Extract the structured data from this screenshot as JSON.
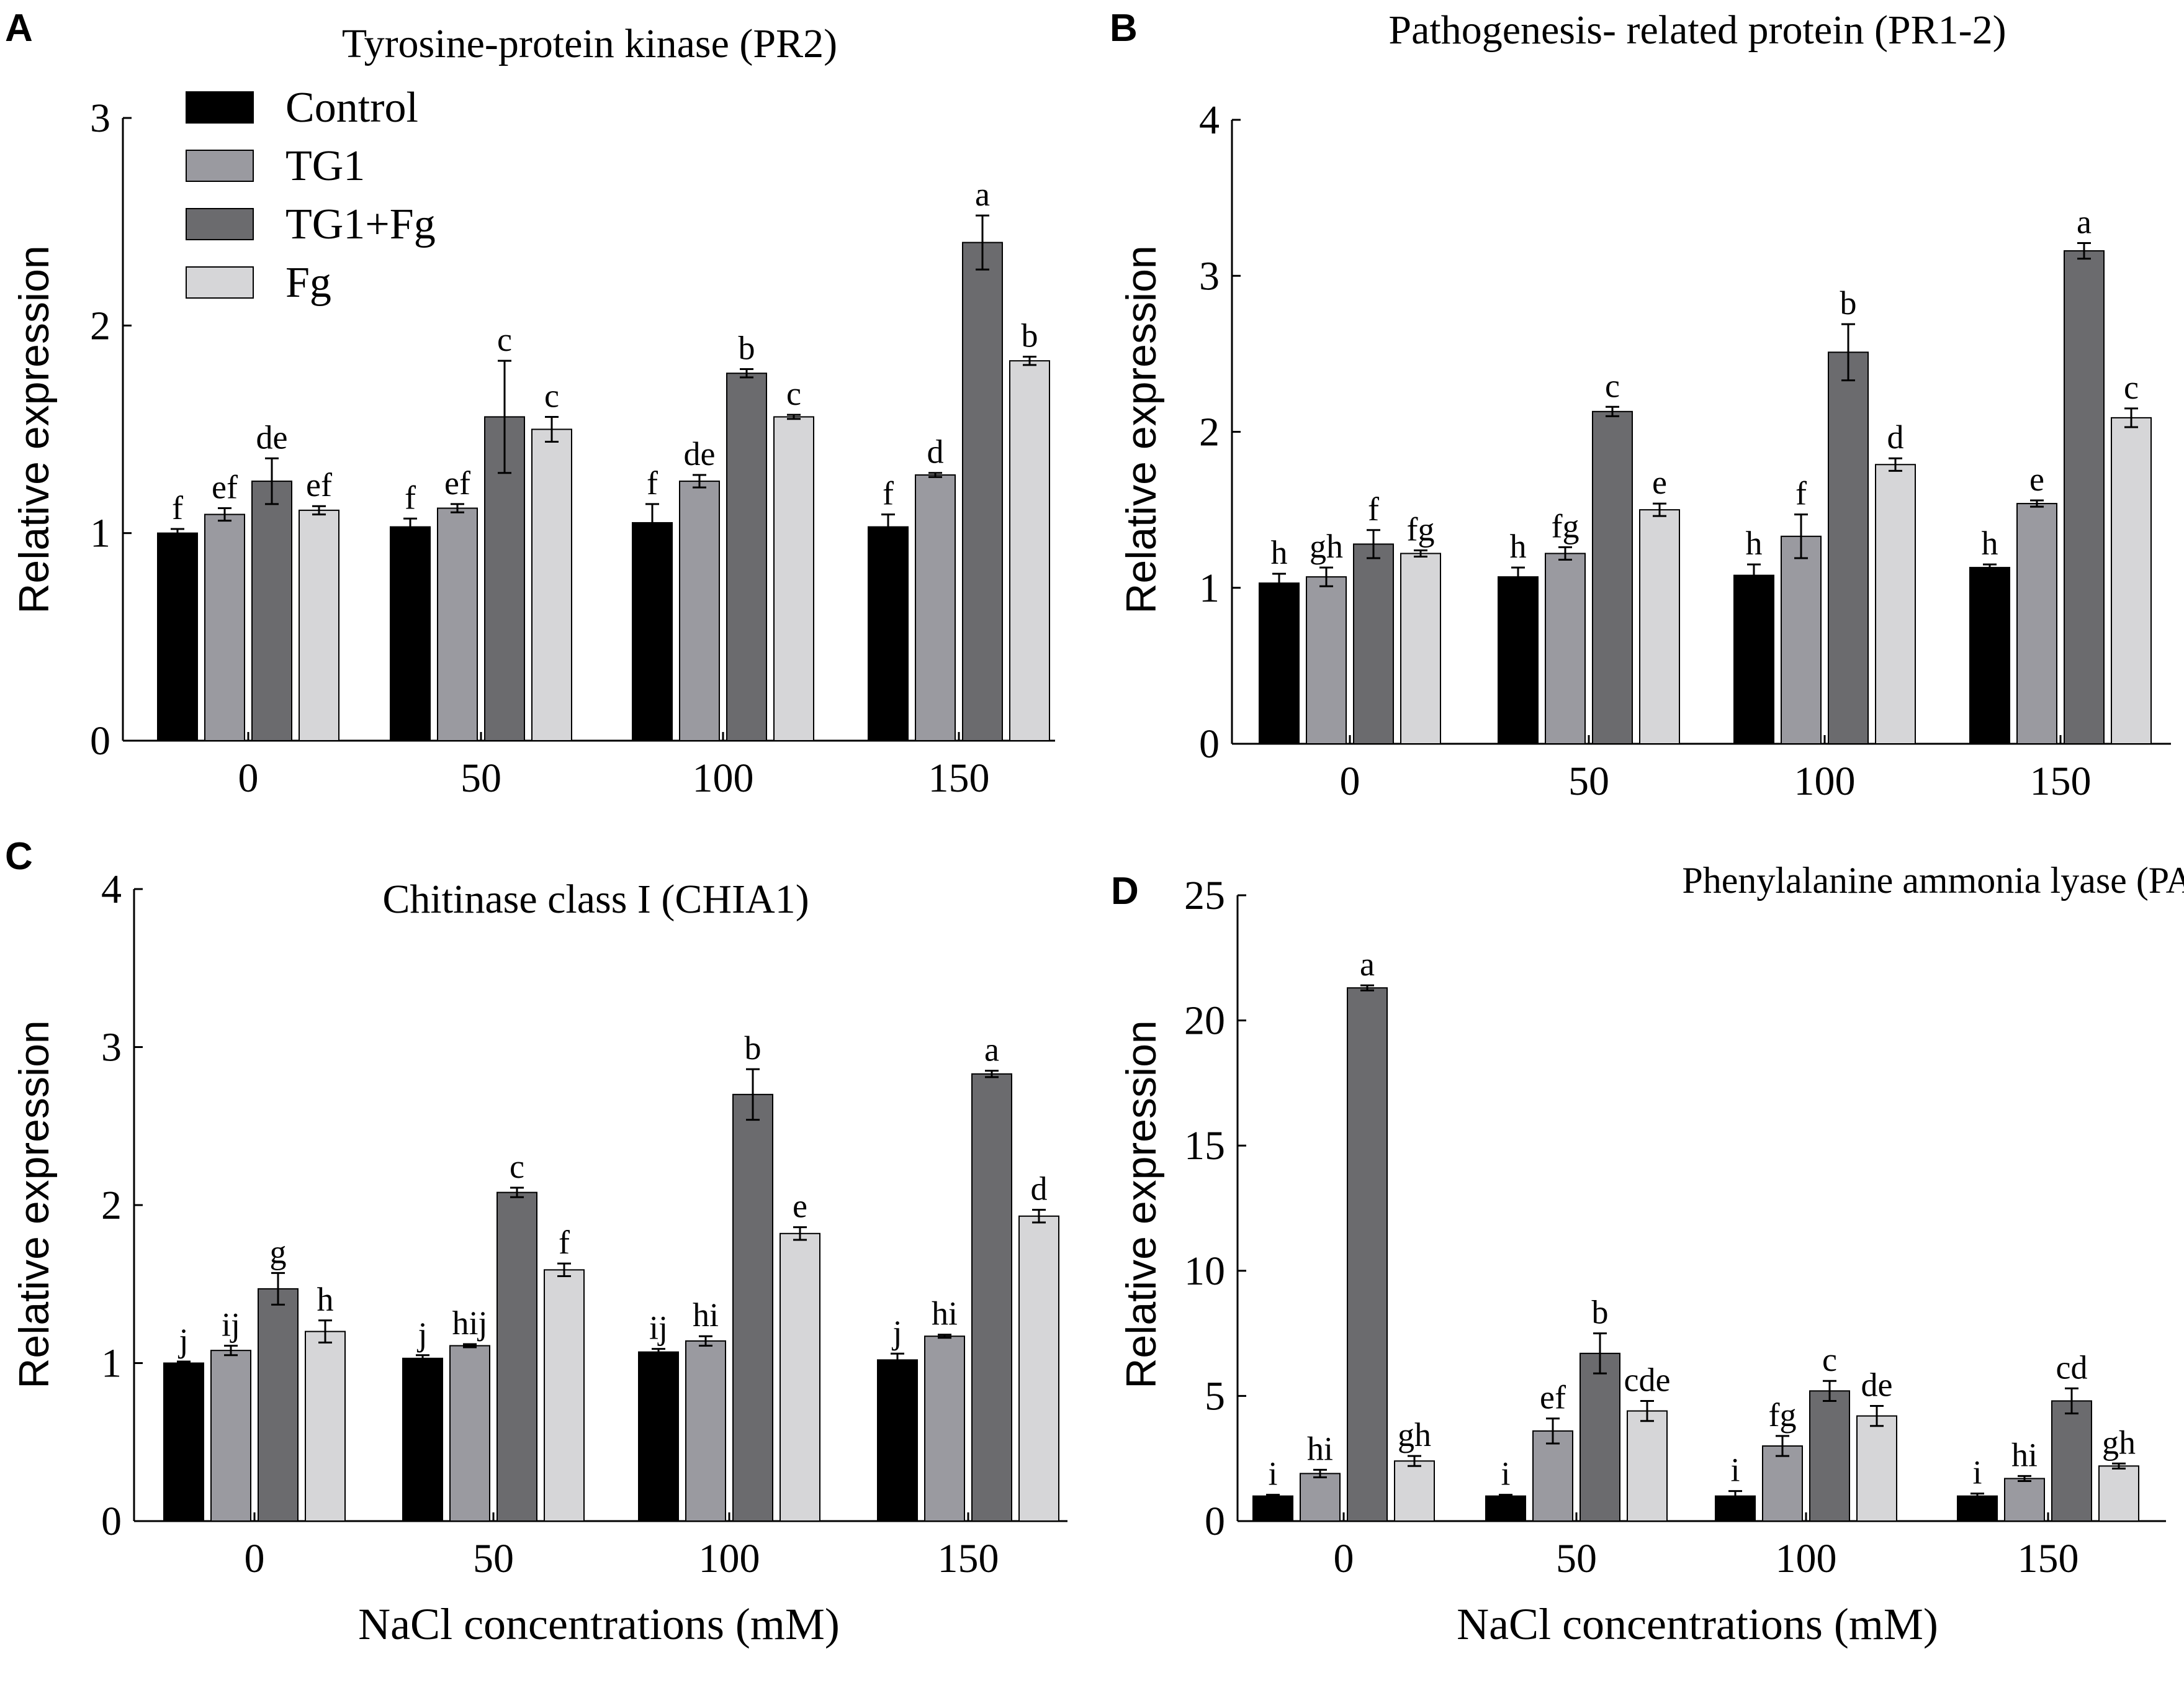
{
  "chart_data": [
    {
      "panel": "A",
      "type": "bar",
      "title": "Tyrosine-protein kinase (PR2)",
      "xlabel": "",
      "ylabel": "Relative expression",
      "ylim": [
        0,
        3
      ],
      "yticks": [
        "0",
        "1",
        "2",
        "3"
      ],
      "categories": [
        "0",
        "50",
        "100",
        "150"
      ],
      "legend": [
        "Control",
        "TG1",
        "TG1+Fg",
        "Fg"
      ],
      "series": [
        {
          "name": "Control",
          "color": "#000000",
          "values": [
            1.0,
            1.03,
            1.05,
            1.03
          ],
          "errors": [
            0.02,
            0.04,
            0.09,
            0.06
          ],
          "labels": [
            "f",
            "f",
            "f",
            "f"
          ]
        },
        {
          "name": "TG1",
          "color": "#9a9aa0",
          "values": [
            1.09,
            1.12,
            1.25,
            1.28
          ],
          "errors": [
            0.03,
            0.02,
            0.03,
            0.01
          ],
          "labels": [
            "ef",
            "ef",
            "de",
            "d"
          ]
        },
        {
          "name": "TG1+Fg",
          "color": "#6b6b6e",
          "values": [
            1.25,
            1.56,
            1.77,
            2.4
          ],
          "errors": [
            0.11,
            0.27,
            0.02,
            0.13
          ],
          "labels": [
            "de",
            "c",
            "b",
            "a"
          ]
        },
        {
          "name": "Fg",
          "color": "#d6d6d8",
          "values": [
            1.11,
            1.5,
            1.56,
            1.83
          ],
          "errors": [
            0.02,
            0.06,
            0.01,
            0.02
          ],
          "labels": [
            "ef",
            "c",
            "c",
            "b"
          ]
        }
      ]
    },
    {
      "panel": "B",
      "type": "bar",
      "title": "Pathogenesis- related protein (PR1-2)",
      "xlabel": "",
      "ylabel": "Relative expression",
      "ylim": [
        0,
        4
      ],
      "yticks": [
        "0",
        "1",
        "2",
        "3",
        "4"
      ],
      "categories": [
        "0",
        "50",
        "100",
        "150"
      ],
      "series": [
        {
          "name": "Control",
          "color": "#000000",
          "values": [
            1.03,
            1.07,
            1.08,
            1.13
          ],
          "errors": [
            0.06,
            0.06,
            0.07,
            0.02
          ],
          "labels": [
            "h",
            "h",
            "h",
            "h"
          ]
        },
        {
          "name": "TG1",
          "color": "#9a9aa0",
          "values": [
            1.07,
            1.22,
            1.33,
            1.54
          ],
          "errors": [
            0.06,
            0.04,
            0.14,
            0.02
          ],
          "labels": [
            "gh",
            "fg",
            "f",
            "e"
          ]
        },
        {
          "name": "TG1+Fg",
          "color": "#6b6b6e",
          "values": [
            1.28,
            2.13,
            2.51,
            3.16
          ],
          "errors": [
            0.09,
            0.03,
            0.18,
            0.05
          ],
          "labels": [
            "f",
            "c",
            "b",
            "a"
          ]
        },
        {
          "name": "Fg",
          "color": "#d6d6d8",
          "values": [
            1.22,
            1.5,
            1.79,
            2.09
          ],
          "errors": [
            0.02,
            0.04,
            0.04,
            0.06
          ],
          "labels": [
            "fg",
            "e",
            "d",
            "c"
          ]
        }
      ]
    },
    {
      "panel": "C",
      "type": "bar",
      "title": "Chitinase class I (CHIA1)",
      "xlabel": "NaCl concentrations (mM)",
      "ylabel": "Relative expression",
      "ylim": [
        0,
        4
      ],
      "yticks": [
        "0",
        "1",
        "2",
        "3",
        "4"
      ],
      "categories": [
        "0",
        "50",
        "100",
        "150"
      ],
      "series": [
        {
          "name": "Control",
          "color": "#000000",
          "values": [
            1.0,
            1.03,
            1.07,
            1.02
          ],
          "errors": [
            0.01,
            0.02,
            0.02,
            0.04
          ],
          "labels": [
            "j",
            "j",
            "ij",
            "j"
          ]
        },
        {
          "name": "TG1",
          "color": "#9a9aa0",
          "values": [
            1.08,
            1.11,
            1.14,
            1.17
          ],
          "errors": [
            0.03,
            0.01,
            0.03,
            0.01
          ],
          "labels": [
            "ij",
            "hij",
            "hi",
            "hi"
          ]
        },
        {
          "name": "TG1+Fg",
          "color": "#6b6b6e",
          "values": [
            1.47,
            2.08,
            2.7,
            2.83
          ],
          "errors": [
            0.1,
            0.03,
            0.16,
            0.02
          ],
          "labels": [
            "g",
            "c",
            "b",
            "a"
          ]
        },
        {
          "name": "Fg",
          "color": "#d6d6d8",
          "values": [
            1.2,
            1.59,
            1.82,
            1.93
          ],
          "errors": [
            0.07,
            0.04,
            0.04,
            0.04
          ],
          "labels": [
            "h",
            "f",
            "e",
            "d"
          ]
        }
      ]
    },
    {
      "panel": "D",
      "type": "bar",
      "title": "Phenylalanine ammonia lyase (PAL)",
      "xlabel": "NaCl concentrations (mM)",
      "ylabel": "Relative expression",
      "ylim": [
        0,
        25
      ],
      "yticks": [
        "0",
        "5",
        "10",
        "15",
        "20",
        "25"
      ],
      "categories": [
        "0",
        "50",
        "100",
        "150"
      ],
      "series": [
        {
          "name": "Control",
          "color": "#000000",
          "values": [
            1.0,
            1.0,
            1.0,
            1.0
          ],
          "errors": [
            0.05,
            0.05,
            0.2,
            0.1
          ],
          "labels": [
            "i",
            "i",
            "i",
            "i"
          ]
        },
        {
          "name": "TG1",
          "color": "#9a9aa0",
          "values": [
            1.9,
            3.6,
            3.0,
            1.7
          ],
          "errors": [
            0.15,
            0.5,
            0.4,
            0.1
          ],
          "labels": [
            "hi",
            "ef",
            "fg",
            "hi"
          ]
        },
        {
          "name": "TG1+Fg",
          "color": "#6b6b6e",
          "values": [
            21.3,
            6.7,
            5.2,
            4.8
          ],
          "errors": [
            0.1,
            0.8,
            0.4,
            0.5
          ],
          "labels": [
            "a",
            "b",
            "c",
            "cd"
          ]
        },
        {
          "name": "Fg",
          "color": "#d6d6d8",
          "values": [
            2.4,
            4.4,
            4.2,
            2.2
          ],
          "errors": [
            0.2,
            0.4,
            0.4,
            0.1
          ],
          "labels": [
            "gh",
            "cde",
            "de",
            "gh"
          ]
        }
      ]
    }
  ]
}
